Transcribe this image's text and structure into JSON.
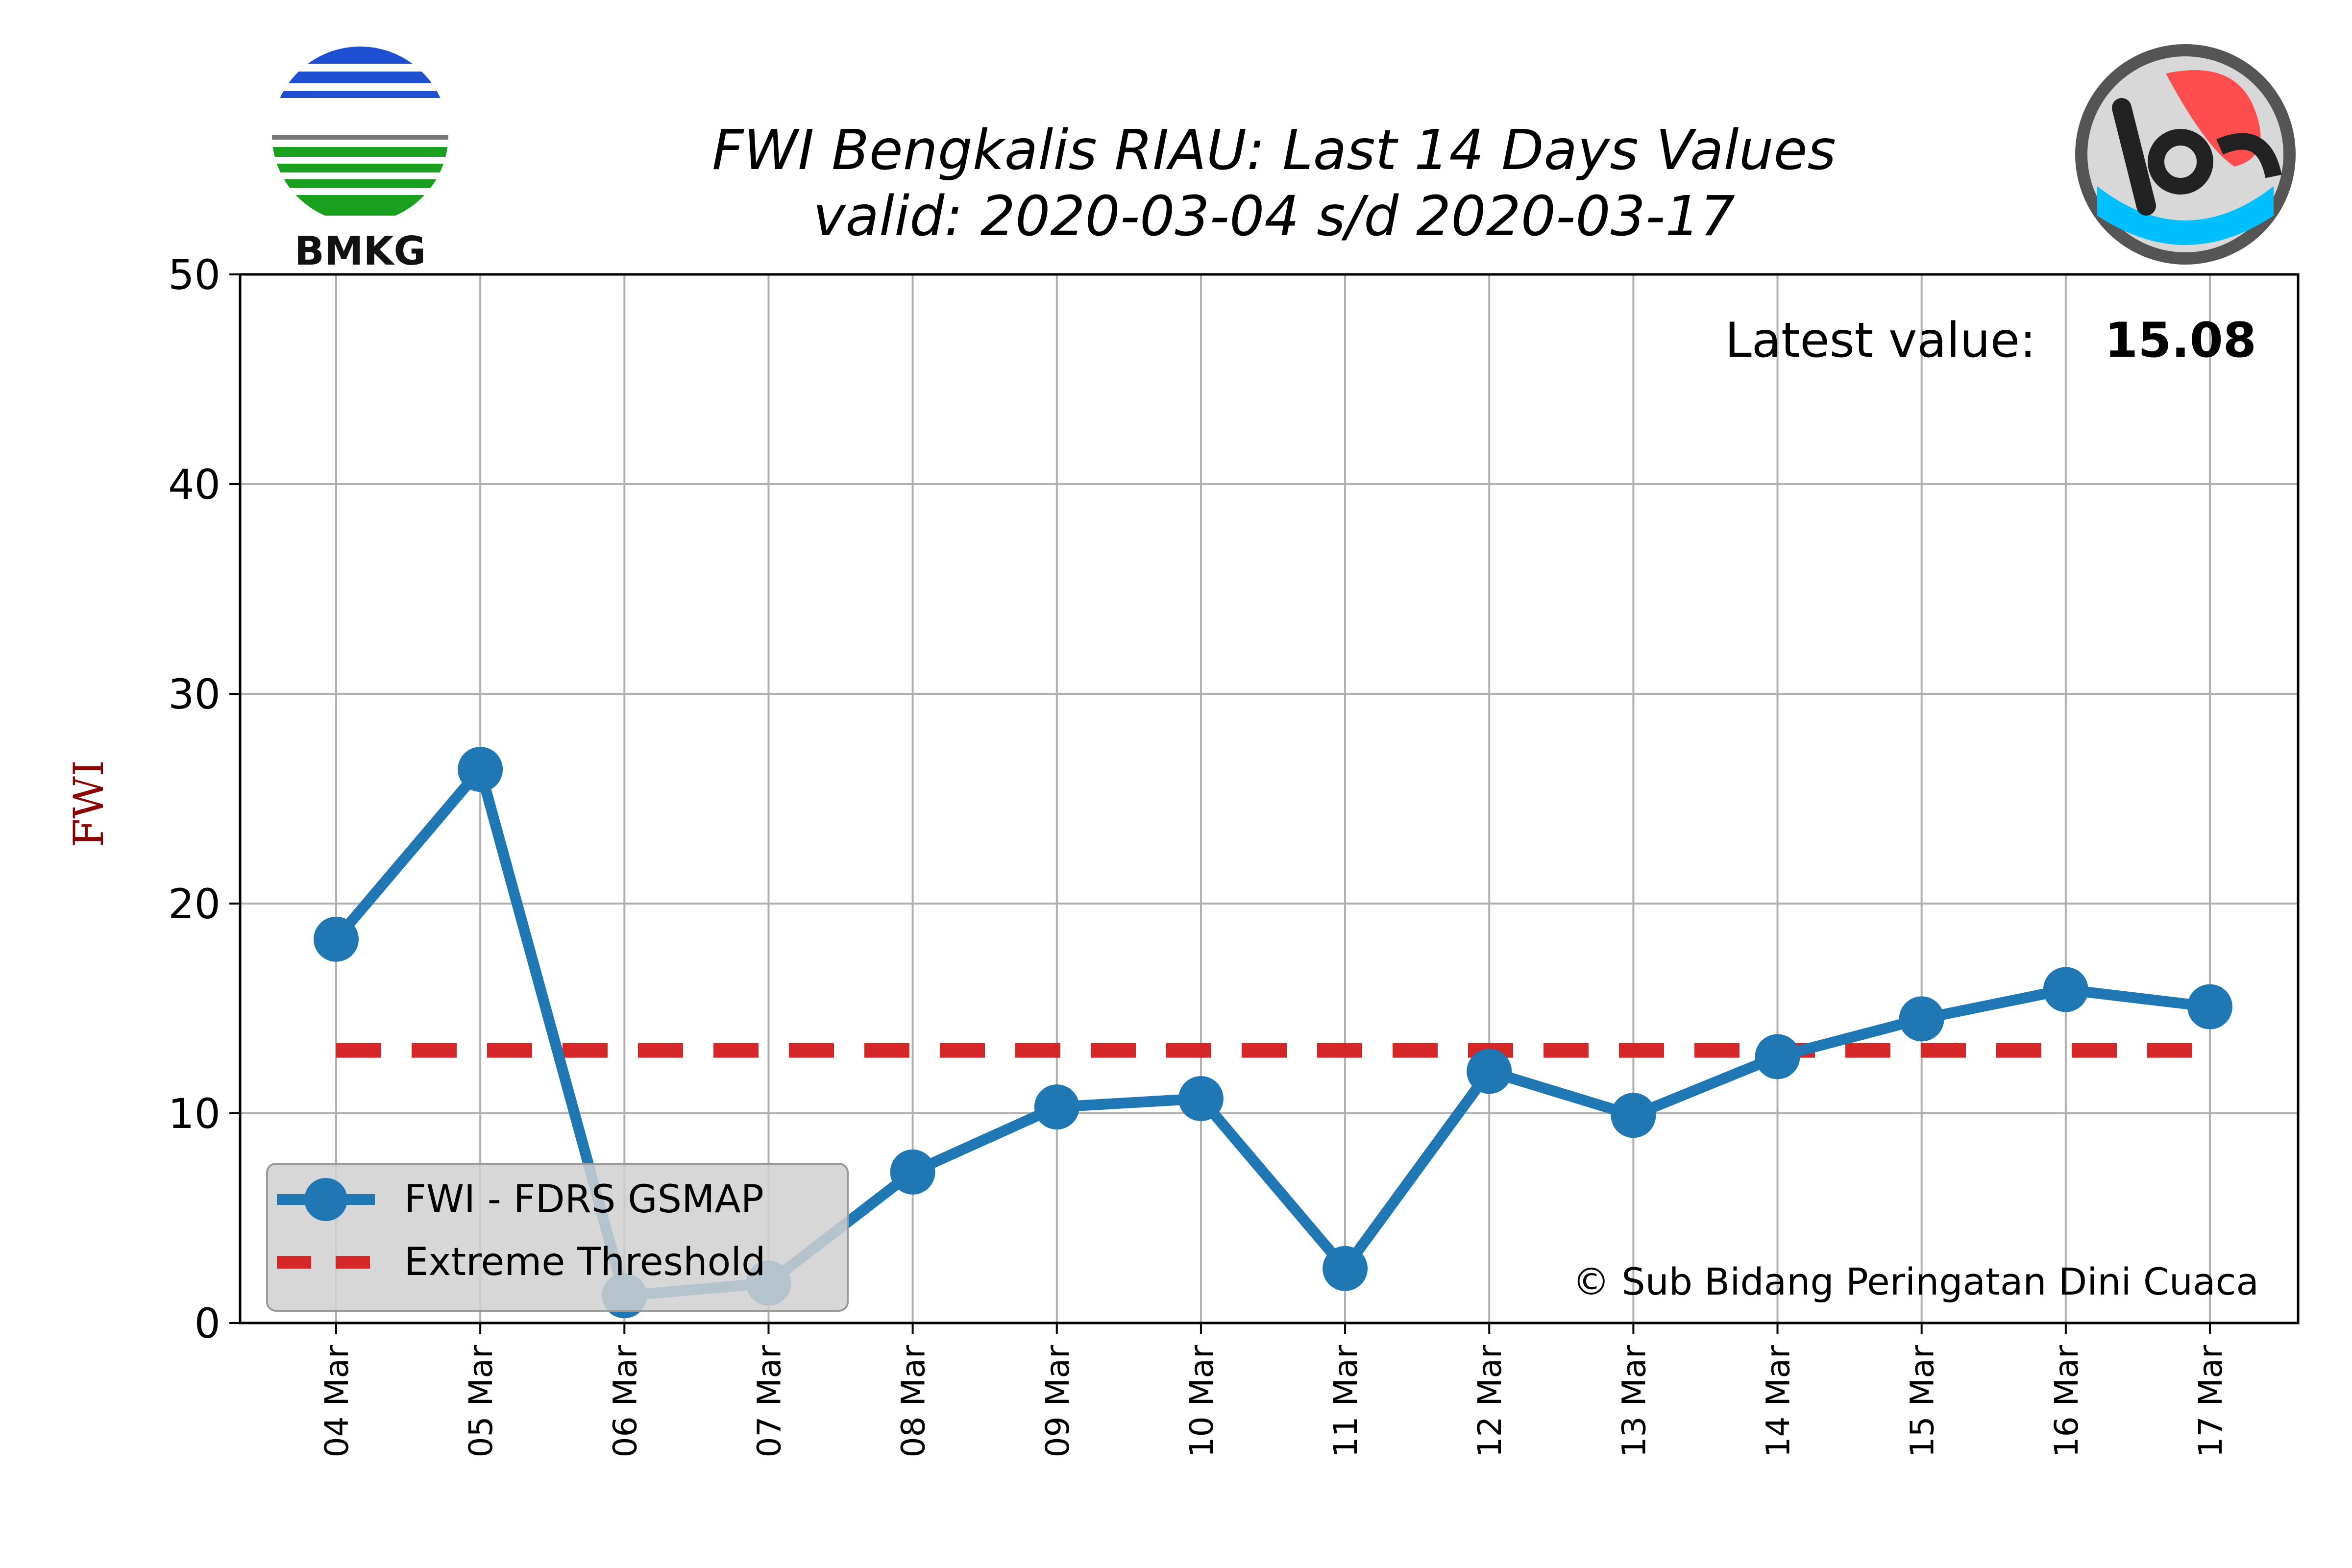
{
  "header": {
    "title_line1": "FWI Bengkalis RIAU: Last 14 Days Values",
    "title_line2": "valid: 2020-03-04 s/d 2020-03-17"
  },
  "logos": {
    "left_text": "BMKG",
    "left_icon": "bmkg-logo-icon",
    "right_icon": "pdc-logo-icon"
  },
  "annotations": {
    "latest_label": "Latest value:",
    "latest_value": "15.08",
    "copyright": "© Sub Bidang Peringatan Dini Cuaca"
  },
  "colors": {
    "series": "#1f77b4",
    "threshold": "#d62728",
    "grid": "#b0b0b0",
    "ylabel": "#8b0000"
  },
  "chart_data": {
    "type": "line",
    "categories": [
      "04 Mar",
      "05 Mar",
      "06 Mar",
      "07 Mar",
      "08 Mar",
      "09 Mar",
      "10 Mar",
      "11 Mar",
      "12 Mar",
      "13 Mar",
      "14 Mar",
      "15 Mar",
      "16 Mar",
      "17 Mar"
    ],
    "series": [
      {
        "name": "FWI - FDRS GSMAP",
        "values": [
          18.3,
          26.4,
          1.3,
          1.9,
          7.2,
          10.3,
          10.7,
          2.6,
          12.0,
          9.9,
          12.7,
          14.5,
          15.9,
          15.08
        ]
      },
      {
        "name": "Extreme Threshold",
        "values": [
          13,
          13,
          13,
          13,
          13,
          13,
          13,
          13,
          13,
          13,
          13,
          13,
          13,
          13
        ],
        "style": "dashed"
      }
    ],
    "title": "FWI Bengkalis RIAU: Last 14 Days Values",
    "xlabel": "",
    "ylabel": "FWI",
    "ylim": [
      0,
      50
    ],
    "yticks": [
      0,
      10,
      20,
      30,
      40,
      50
    ],
    "grid": true,
    "legend_position": "lower-left"
  }
}
